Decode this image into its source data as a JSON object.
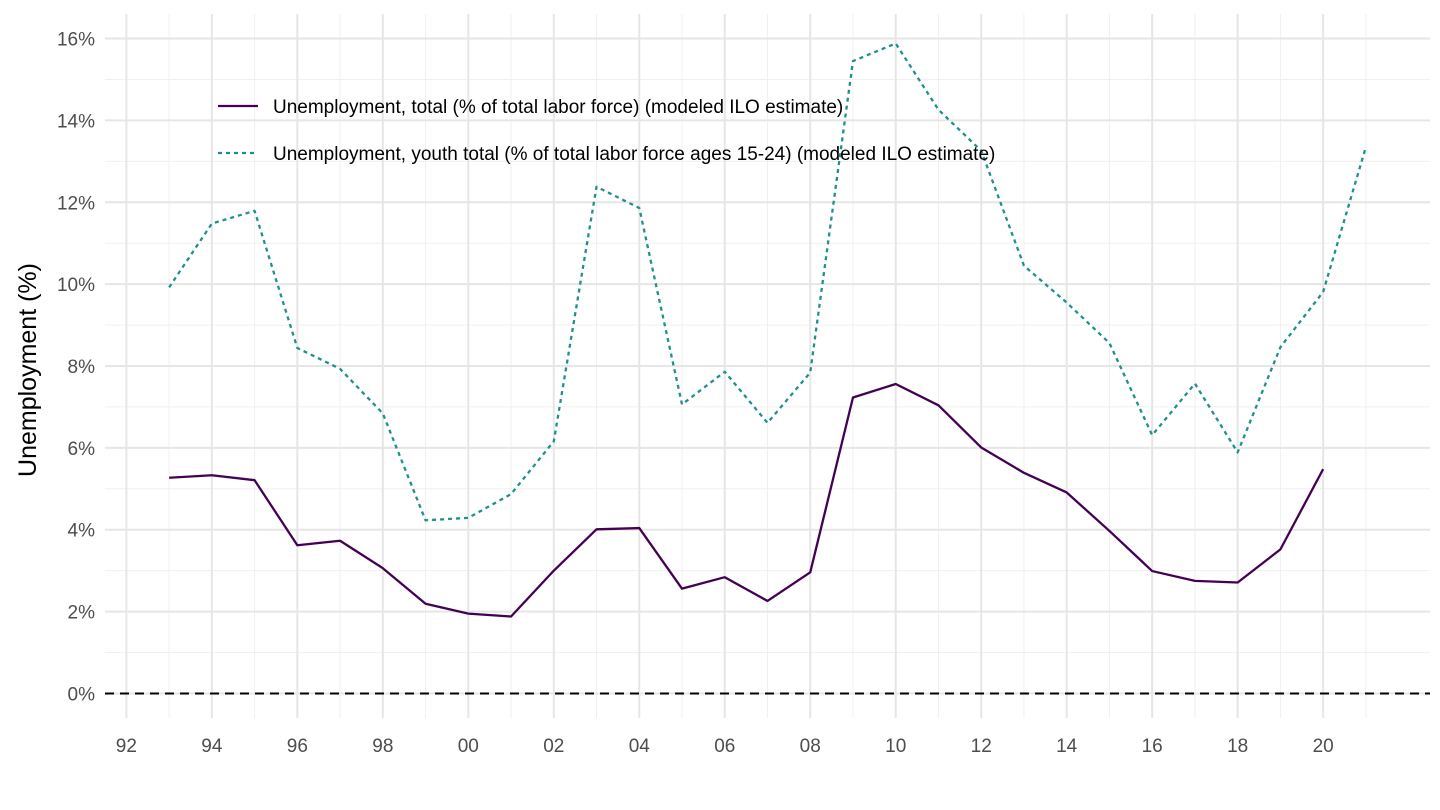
{
  "chart_data": {
    "type": "line",
    "ylabel": "Unemployment (%)",
    "xlabel": "",
    "x": [
      1993,
      1994,
      1995,
      1996,
      1997,
      1998,
      1999,
      2000,
      2001,
      2002,
      2003,
      2004,
      2005,
      2006,
      2007,
      2008,
      2009,
      2010,
      2011,
      2012,
      2013,
      2014,
      2015,
      2016,
      2017,
      2018,
      2019,
      2020,
      2021
    ],
    "x_ticks": [
      1992,
      1994,
      1996,
      1998,
      2000,
      2002,
      2004,
      2006,
      2008,
      2010,
      2012,
      2014,
      2016,
      2018,
      2020
    ],
    "x_tick_labels": [
      "92",
      "94",
      "96",
      "98",
      "00",
      "02",
      "04",
      "06",
      "08",
      "10",
      "12",
      "14",
      "16",
      "18",
      "20"
    ],
    "xlim": [
      1991.5,
      2022.5
    ],
    "y_ticks": [
      0,
      2,
      4,
      6,
      8,
      10,
      12,
      14,
      16
    ],
    "y_tick_labels": [
      "0%",
      "2%",
      "4%",
      "6%",
      "8%",
      "10%",
      "12%",
      "14%",
      "16%"
    ],
    "ylim": [
      -0.6,
      16.6
    ],
    "grid": true,
    "reference_line": {
      "y": 0,
      "style": "dashed",
      "color": "#000000"
    },
    "legend_position": "top-left",
    "series": [
      {
        "name": "Unemployment, total (% of total labor force) (modeled ILO estimate)",
        "color": "#440154",
        "style": "solid",
        "values": [
          5.27,
          5.33,
          5.21,
          3.62,
          3.73,
          3.06,
          2.19,
          1.95,
          1.88,
          3.0,
          4.01,
          4.04,
          2.56,
          2.84,
          2.26,
          2.96,
          7.23,
          7.56,
          7.04,
          6.01,
          5.39,
          4.91,
          3.97,
          2.99,
          2.75,
          2.71,
          3.52,
          5.48,
          null
        ]
      },
      {
        "name": "Unemployment, youth total (% of total labor force ages 15-24) (modeled ILO estimate)",
        "color": "#21908c",
        "style": "dashed",
        "values": [
          9.92,
          11.48,
          11.79,
          8.44,
          7.93,
          6.84,
          4.23,
          4.29,
          4.87,
          6.16,
          12.38,
          11.86,
          7.06,
          7.86,
          6.61,
          7.84,
          15.45,
          15.88,
          14.26,
          13.26,
          10.45,
          9.55,
          8.56,
          6.31,
          7.57,
          5.89,
          8.46,
          9.81,
          13.35
        ]
      }
    ]
  }
}
